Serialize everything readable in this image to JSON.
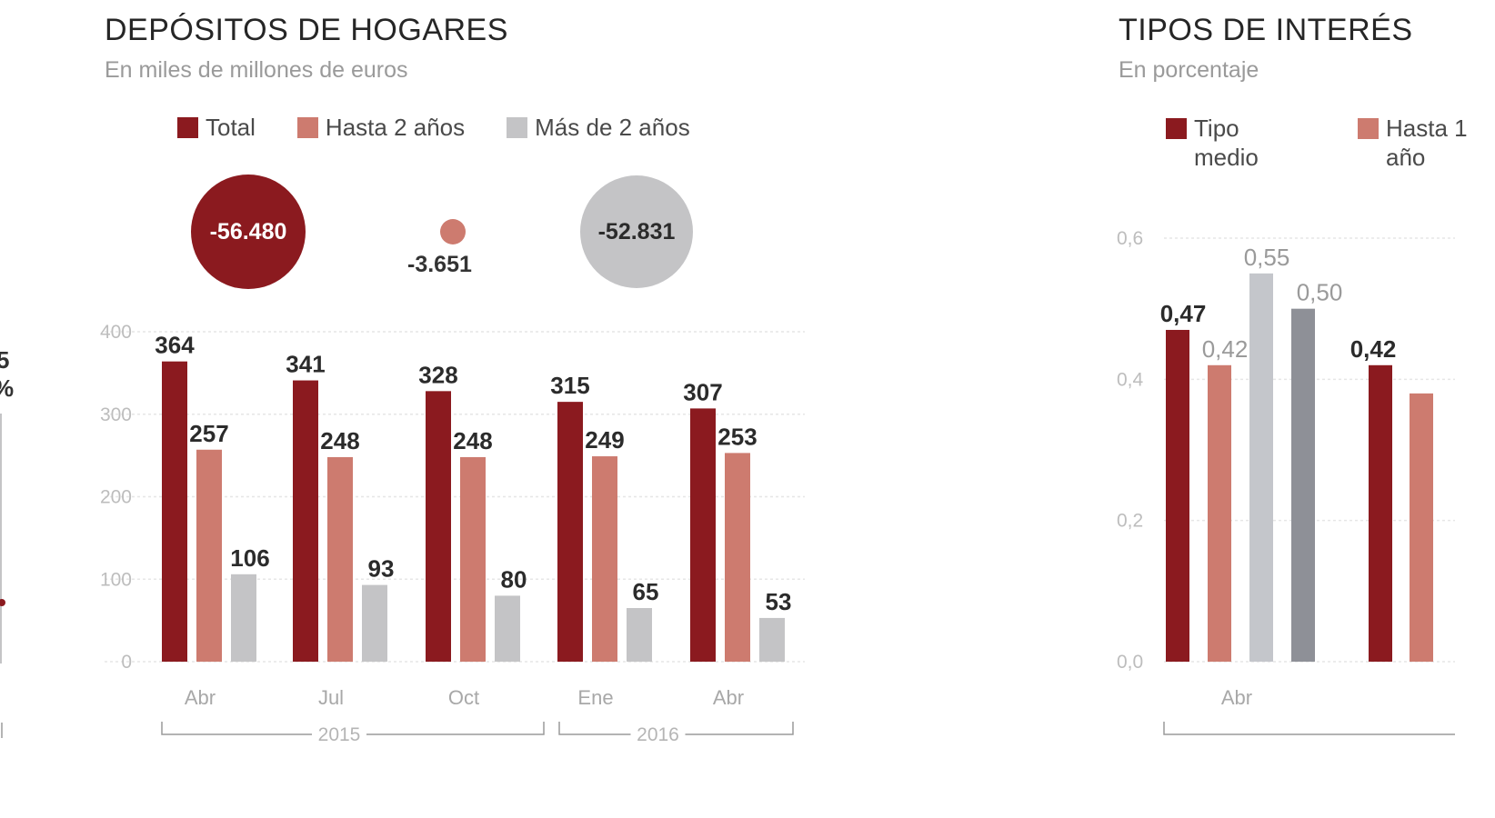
{
  "left_fragment": {
    "top_text_1": "5",
    "top_text_2": "%"
  },
  "main": {
    "title": "DEPÓSITOS DE HOGARES",
    "subtitle": "En miles de millones de euros",
    "colors": {
      "total": "#8b1a1f",
      "hasta": "#cd7b6f",
      "mas": "#c4c4c6"
    },
    "legend": [
      {
        "key": "total",
        "label": "Total",
        "color": "#8b1a1f"
      },
      {
        "key": "hasta",
        "label": "Hasta 2 años",
        "color": "#cd7b6f"
      },
      {
        "key": "mas",
        "label": "Más de 2 años",
        "color": "#c4c4c6"
      }
    ],
    "changes": [
      {
        "key": "total",
        "value": "-56.480",
        "color": "#8b1a1f"
      },
      {
        "key": "hasta",
        "value": "-3.651",
        "color": "#cd7b6f"
      },
      {
        "key": "mas",
        "value": "-52.831",
        "color": "#c4c4c6"
      }
    ],
    "years": [
      "2015",
      "2016"
    ]
  },
  "right": {
    "title": "TIPOS DE INTERÉS",
    "subtitle": "En porcentaje",
    "legend": [
      {
        "label": "Tipo medio",
        "color": "#8b1a1f"
      },
      {
        "label": "Hasta 1 año",
        "color": "#cd7b6f"
      }
    ]
  },
  "chart_data": [
    {
      "type": "bar",
      "title": "DEPÓSITOS DE HOGARES",
      "subtitle": "En miles de millones de euros",
      "categories": [
        "Abr",
        "Jul",
        "Oct",
        "Ene",
        "Abr"
      ],
      "series": [
        {
          "name": "Total",
          "values": [
            364,
            341,
            328,
            315,
            307
          ]
        },
        {
          "name": "Hasta 2 años",
          "values": [
            257,
            248,
            248,
            249,
            253
          ]
        },
        {
          "name": "Más de 2 años",
          "values": [
            106,
            93,
            80,
            65,
            53
          ]
        }
      ],
      "ylim": [
        0,
        400
      ],
      "yticks": [
        0,
        100,
        200,
        300,
        400
      ],
      "grid": true,
      "legend": "top"
    },
    {
      "type": "bar",
      "title": "TIPOS DE INTERÉS",
      "subtitle": "En porcentaje",
      "categories": [
        "Abr",
        ""
      ],
      "series": [
        {
          "name": "Tipo medio",
          "values": [
            0.47,
            0.42
          ]
        },
        {
          "name": "Hasta 1 año",
          "values": [
            0.42,
            null
          ]
        },
        {
          "values": [
            0.55,
            null
          ]
        },
        {
          "values": [
            0.5,
            null
          ]
        }
      ],
      "value_labels": [
        [
          "0,47",
          "0,42"
        ],
        [
          "0,42",
          ""
        ],
        [
          "0,55",
          ""
        ],
        [
          "0,50",
          ""
        ]
      ],
      "ylim": [
        0,
        0.6
      ],
      "yticks": [
        "0,0",
        "0,2",
        "0,4",
        "0,6"
      ],
      "grid": true,
      "legend": "top"
    }
  ]
}
